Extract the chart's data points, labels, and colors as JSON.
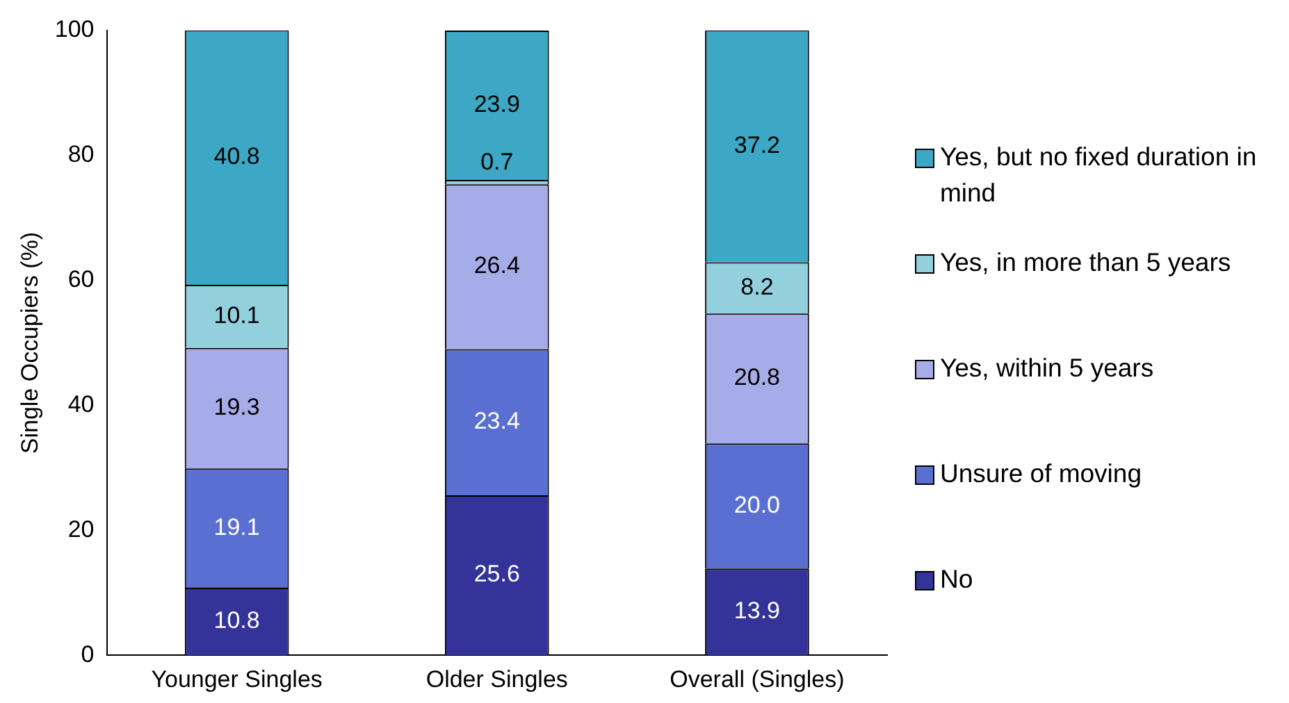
{
  "chart_data": {
    "type": "bar",
    "ylabel": "Single Occupiers (%)",
    "categories": [
      "Younger Singles",
      "Older Singles",
      "Overall (Singles)"
    ],
    "stacked": true,
    "ylim": [
      0,
      100
    ],
    "yticks": [
      0,
      20,
      40,
      60,
      80,
      100
    ],
    "grid": false,
    "legend": "right",
    "series": [
      {
        "name": "No",
        "color": "#333399",
        "values": [
          10.8,
          25.6,
          13.9
        ],
        "value_labels": [
          "10.8",
          "25.6",
          "13.9"
        ]
      },
      {
        "name": "Unsure of moving",
        "color": "#5a6fd2",
        "values": [
          19.1,
          23.4,
          20.0
        ],
        "value_labels": [
          "19.1",
          "23.4",
          "20.0"
        ]
      },
      {
        "name": "Yes, within 5 years",
        "color": "#a6ace8",
        "values": [
          19.3,
          26.4,
          20.8
        ],
        "value_labels": [
          "19.3",
          "26.4",
          "20.8"
        ]
      },
      {
        "name": "Yes, in more than 5 years",
        "color": "#93d0de",
        "values": [
          10.1,
          0.7,
          8.2
        ],
        "value_labels": [
          "10.1",
          "0.7",
          "8.2"
        ]
      },
      {
        "name": "Yes, but no fixed duration in mind",
        "color": "#3ca8c5",
        "values": [
          40.8,
          23.9,
          37.2
        ],
        "value_labels": [
          "40.8",
          "23.9",
          "37.2"
        ]
      }
    ]
  }
}
